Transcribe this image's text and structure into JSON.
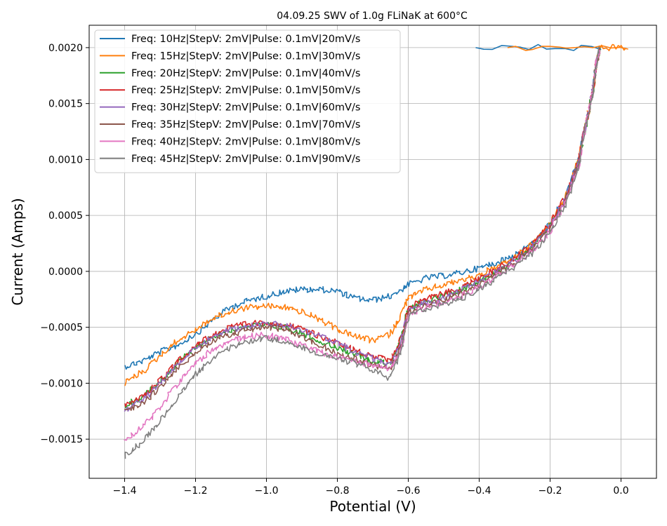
{
  "chart_data": {
    "type": "line",
    "title": "04.09.25 SWV of 1.0g FLiNaK at 600°C",
    "xlabel": "Potential (V)",
    "ylabel": "Current (Amps)",
    "xlim": [
      -1.5,
      0.1
    ],
    "ylim": [
      -0.00185,
      0.0022
    ],
    "x_ticks": [
      -1.4,
      -1.2,
      -1.0,
      -0.8,
      -0.6,
      -0.4,
      -0.2,
      0.0
    ],
    "x_tick_labels": [
      "−1.4",
      "−1.2",
      "−1.0",
      "−0.8",
      "−0.6",
      "−0.4",
      "−0.2",
      "0.0"
    ],
    "y_ticks": [
      -0.0015,
      -0.001,
      -0.0005,
      0.0,
      0.0005,
      0.001,
      0.0015,
      0.002
    ],
    "y_tick_labels": [
      "−0.0015",
      "−0.0010",
      "−0.0005",
      "0.0000",
      "0.0005",
      "0.0010",
      "0.0015",
      "0.0020"
    ],
    "grid": true,
    "legend_position": "top-left",
    "series": [
      {
        "name": "Freq: 10Hz|StepV: 2mV|Pulse: 0.1mV|20mV/s",
        "color": "#1f77b4",
        "points": [
          [
            -1.4,
            -0.00085
          ],
          [
            -1.35,
            -0.0008
          ],
          [
            -1.3,
            -0.00072
          ],
          [
            -1.25,
            -0.00066
          ],
          [
            -1.2,
            -0.00056
          ],
          [
            -1.15,
            -0.00043
          ],
          [
            -1.1,
            -0.00032
          ],
          [
            -1.05,
            -0.00026
          ],
          [
            -1.0,
            -0.00022
          ],
          [
            -0.95,
            -0.00018
          ],
          [
            -0.9,
            -0.00016
          ],
          [
            -0.85,
            -0.00016
          ],
          [
            -0.8,
            -0.00018
          ],
          [
            -0.75,
            -0.00024
          ],
          [
            -0.7,
            -0.00026
          ],
          [
            -0.65,
            -0.00022
          ],
          [
            -0.6,
            -0.00012
          ],
          [
            -0.55,
            -6e-05
          ],
          [
            -0.5,
            -4e-05
          ],
          [
            -0.45,
            -1e-05
          ],
          [
            -0.4,
            3e-05
          ],
          [
            -0.35,
            8e-05
          ],
          [
            -0.3,
            0.00015
          ],
          [
            -0.25,
            0.00025
          ],
          [
            -0.2,
            0.00042
          ],
          [
            -0.15,
            0.00072
          ],
          [
            -0.12,
            0.001
          ],
          [
            -0.1,
            0.0013
          ],
          [
            -0.08,
            0.0016
          ],
          [
            -0.07,
            0.00185
          ],
          [
            -0.06,
            0.002
          ],
          [
            -0.41,
            0.002
          ]
        ]
      },
      {
        "name": "Freq: 15Hz|StepV: 2mV|Pulse: 0.1mV|30mV/s",
        "color": "#ff7f0e",
        "points": [
          [
            -1.4,
            -0.001
          ],
          [
            -1.35,
            -0.0009
          ],
          [
            -1.3,
            -0.00075
          ],
          [
            -1.25,
            -0.00062
          ],
          [
            -1.2,
            -0.00052
          ],
          [
            -1.15,
            -0.00042
          ],
          [
            -1.1,
            -0.00036
          ],
          [
            -1.05,
            -0.00032
          ],
          [
            -1.0,
            -0.00031
          ],
          [
            -0.95,
            -0.00032
          ],
          [
            -0.9,
            -0.00036
          ],
          [
            -0.85,
            -0.00043
          ],
          [
            -0.8,
            -0.00052
          ],
          [
            -0.75,
            -0.00058
          ],
          [
            -0.7,
            -0.00062
          ],
          [
            -0.65,
            -0.00056
          ],
          [
            -0.62,
            -0.00038
          ],
          [
            -0.6,
            -0.00024
          ],
          [
            -0.55,
            -0.00016
          ],
          [
            -0.5,
            -0.00012
          ],
          [
            -0.45,
            -8e-05
          ],
          [
            -0.4,
            -3e-05
          ],
          [
            -0.35,
            4e-05
          ],
          [
            -0.3,
            0.00012
          ],
          [
            -0.25,
            0.00024
          ],
          [
            -0.2,
            0.00042
          ],
          [
            -0.15,
            0.00072
          ],
          [
            -0.12,
            0.001
          ],
          [
            -0.1,
            0.0013
          ],
          [
            -0.08,
            0.0016
          ],
          [
            -0.07,
            0.00185
          ],
          [
            -0.06,
            0.002
          ],
          [
            0.02,
            0.002
          ],
          [
            -0.32,
            0.002
          ]
        ]
      },
      {
        "name": "Freq: 20Hz|StepV: 2mV|Pulse: 0.1mV|40mV/s",
        "color": "#2ca02c",
        "points": [
          [
            -1.4,
            -0.0012
          ],
          [
            -1.35,
            -0.00112
          ],
          [
            -1.3,
            -0.00098
          ],
          [
            -1.25,
            -0.00082
          ],
          [
            -1.2,
            -0.00068
          ],
          [
            -1.15,
            -0.00058
          ],
          [
            -1.1,
            -0.00052
          ],
          [
            -1.05,
            -0.00049
          ],
          [
            -1.0,
            -0.00048
          ],
          [
            -0.95,
            -0.0005
          ],
          [
            -0.9,
            -0.00055
          ],
          [
            -0.85,
            -0.00062
          ],
          [
            -0.8,
            -0.00068
          ],
          [
            -0.75,
            -0.00074
          ],
          [
            -0.7,
            -0.0008
          ],
          [
            -0.65,
            -0.00082
          ],
          [
            -0.62,
            -0.0006
          ],
          [
            -0.6,
            -0.00034
          ],
          [
            -0.55,
            -0.00026
          ],
          [
            -0.5,
            -0.00022
          ],
          [
            -0.45,
            -0.00016
          ],
          [
            -0.4,
            -8e-05
          ],
          [
            -0.35,
            0.0
          ],
          [
            -0.3,
            0.0001
          ],
          [
            -0.25,
            0.00022
          ],
          [
            -0.2,
            0.0004
          ],
          [
            -0.15,
            0.0007
          ],
          [
            -0.12,
            0.00098
          ],
          [
            -0.1,
            0.0013
          ],
          [
            -0.08,
            0.0016
          ],
          [
            -0.07,
            0.00185
          ],
          [
            -0.06,
            0.00198
          ]
        ]
      },
      {
        "name": "Freq: 25Hz|StepV: 2mV|Pulse: 0.1mV|50mV/s",
        "color": "#d62728",
        "points": [
          [
            -1.4,
            -0.0012
          ],
          [
            -1.35,
            -0.00112
          ],
          [
            -1.3,
            -0.00097
          ],
          [
            -1.25,
            -0.0008
          ],
          [
            -1.2,
            -0.00066
          ],
          [
            -1.15,
            -0.00056
          ],
          [
            -1.1,
            -0.0005
          ],
          [
            -1.05,
            -0.00047
          ],
          [
            -1.0,
            -0.00046
          ],
          [
            -0.95,
            -0.00047
          ],
          [
            -0.9,
            -0.00052
          ],
          [
            -0.85,
            -0.00058
          ],
          [
            -0.8,
            -0.00064
          ],
          [
            -0.75,
            -0.0007
          ],
          [
            -0.7,
            -0.00076
          ],
          [
            -0.65,
            -0.0008
          ],
          [
            -0.62,
            -0.0006
          ],
          [
            -0.6,
            -0.00032
          ],
          [
            -0.55,
            -0.00024
          ],
          [
            -0.5,
            -0.0002
          ],
          [
            -0.45,
            -0.00014
          ],
          [
            -0.4,
            -6e-05
          ],
          [
            -0.35,
            2e-05
          ],
          [
            -0.3,
            0.00012
          ],
          [
            -0.25,
            0.00024
          ],
          [
            -0.2,
            0.00042
          ],
          [
            -0.15,
            0.00072
          ],
          [
            -0.12,
            0.001
          ],
          [
            -0.1,
            0.0013
          ],
          [
            -0.08,
            0.0016
          ],
          [
            -0.07,
            0.00185
          ],
          [
            -0.06,
            0.00198
          ]
        ]
      },
      {
        "name": "Freq: 30Hz|StepV: 2mV|Pulse: 0.1mV|60mV/s",
        "color": "#9467bd",
        "points": [
          [
            -1.4,
            -0.00125
          ],
          [
            -1.35,
            -0.00115
          ],
          [
            -1.3,
            -0.001
          ],
          [
            -1.25,
            -0.00083
          ],
          [
            -1.2,
            -0.00068
          ],
          [
            -1.15,
            -0.00058
          ],
          [
            -1.1,
            -0.00052
          ],
          [
            -1.05,
            -0.00049
          ],
          [
            -1.0,
            -0.00047
          ],
          [
            -0.95,
            -0.00048
          ],
          [
            -0.9,
            -0.00052
          ],
          [
            -0.85,
            -0.00058
          ],
          [
            -0.8,
            -0.00064
          ],
          [
            -0.75,
            -0.00072
          ],
          [
            -0.7,
            -0.00078
          ],
          [
            -0.65,
            -0.00084
          ],
          [
            -0.62,
            -0.00062
          ],
          [
            -0.6,
            -0.00034
          ],
          [
            -0.55,
            -0.00028
          ],
          [
            -0.5,
            -0.00024
          ],
          [
            -0.45,
            -0.00017
          ],
          [
            -0.4,
            -9e-05
          ],
          [
            -0.35,
            0.0
          ],
          [
            -0.3,
            0.0001
          ],
          [
            -0.25,
            0.00022
          ],
          [
            -0.2,
            0.0004
          ],
          [
            -0.15,
            0.0007
          ],
          [
            -0.12,
            0.00098
          ],
          [
            -0.1,
            0.0013
          ],
          [
            -0.08,
            0.0016
          ],
          [
            -0.07,
            0.00185
          ],
          [
            -0.06,
            0.00198
          ]
        ]
      },
      {
        "name": "Freq: 35Hz|StepV: 2mV|Pulse: 0.1mV|70mV/s",
        "color": "#8c564b",
        "points": [
          [
            -1.4,
            -0.00125
          ],
          [
            -1.35,
            -0.00118
          ],
          [
            -1.3,
            -0.00104
          ],
          [
            -1.25,
            -0.00087
          ],
          [
            -1.2,
            -0.00072
          ],
          [
            -1.15,
            -0.00062
          ],
          [
            -1.1,
            -0.00056
          ],
          [
            -1.05,
            -0.00052
          ],
          [
            -1.0,
            -0.0005
          ],
          [
            -0.95,
            -0.00052
          ],
          [
            -0.9,
            -0.00058
          ],
          [
            -0.85,
            -0.00066
          ],
          [
            -0.8,
            -0.00073
          ],
          [
            -0.75,
            -0.00078
          ],
          [
            -0.7,
            -0.00084
          ],
          [
            -0.65,
            -0.00088
          ],
          [
            -0.62,
            -0.00066
          ],
          [
            -0.6,
            -0.00036
          ],
          [
            -0.55,
            -0.0003
          ],
          [
            -0.5,
            -0.00026
          ],
          [
            -0.45,
            -0.0002
          ],
          [
            -0.4,
            -0.00012
          ],
          [
            -0.35,
            -2e-05
          ],
          [
            -0.3,
            8e-05
          ],
          [
            -0.25,
            0.0002
          ],
          [
            -0.2,
            0.00038
          ],
          [
            -0.15,
            0.00068
          ],
          [
            -0.12,
            0.00096
          ],
          [
            -0.1,
            0.0013
          ],
          [
            -0.08,
            0.0016
          ],
          [
            -0.07,
            0.00185
          ],
          [
            -0.06,
            0.00198
          ]
        ]
      },
      {
        "name": "Freq: 40Hz|StepV: 2mV|Pulse: 0.1mV|80mV/s",
        "color": "#e377c2",
        "points": [
          [
            -1.4,
            -0.0015
          ],
          [
            -1.35,
            -0.0014
          ],
          [
            -1.3,
            -0.00122
          ],
          [
            -1.25,
            -0.001
          ],
          [
            -1.2,
            -0.00082
          ],
          [
            -1.15,
            -0.0007
          ],
          [
            -1.1,
            -0.00062
          ],
          [
            -1.05,
            -0.00058
          ],
          [
            -1.0,
            -0.00057
          ],
          [
            -0.95,
            -0.0006
          ],
          [
            -0.9,
            -0.00066
          ],
          [
            -0.85,
            -0.00072
          ],
          [
            -0.8,
            -0.00076
          ],
          [
            -0.75,
            -0.0008
          ],
          [
            -0.7,
            -0.00084
          ],
          [
            -0.65,
            -0.00088
          ],
          [
            -0.62,
            -0.00068
          ],
          [
            -0.6,
            -0.00038
          ],
          [
            -0.55,
            -0.00032
          ],
          [
            -0.5,
            -0.00028
          ],
          [
            -0.45,
            -0.00022
          ],
          [
            -0.4,
            -0.00014
          ],
          [
            -0.35,
            -4e-05
          ],
          [
            -0.3,
            6e-05
          ],
          [
            -0.25,
            0.00018
          ],
          [
            -0.2,
            0.00036
          ],
          [
            -0.15,
            0.00066
          ],
          [
            -0.12,
            0.00094
          ],
          [
            -0.1,
            0.0013
          ],
          [
            -0.08,
            0.0016
          ],
          [
            -0.07,
            0.00185
          ],
          [
            -0.06,
            0.00198
          ]
        ]
      },
      {
        "name": "Freq: 45Hz|StepV: 2mV|Pulse: 0.1mV|90mV/s",
        "color": "#7f7f7f",
        "points": [
          [
            -1.4,
            -0.00165
          ],
          [
            -1.35,
            -0.00152
          ],
          [
            -1.3,
            -0.00134
          ],
          [
            -1.25,
            -0.00112
          ],
          [
            -1.2,
            -0.00092
          ],
          [
            -1.15,
            -0.00078
          ],
          [
            -1.1,
            -0.00068
          ],
          [
            -1.05,
            -0.00062
          ],
          [
            -1.0,
            -0.0006
          ],
          [
            -0.95,
            -0.00062
          ],
          [
            -0.9,
            -0.00068
          ],
          [
            -0.85,
            -0.00074
          ],
          [
            -0.8,
            -0.00078
          ],
          [
            -0.75,
            -0.00082
          ],
          [
            -0.7,
            -0.00088
          ],
          [
            -0.65,
            -0.00096
          ],
          [
            -0.62,
            -0.00072
          ],
          [
            -0.6,
            -0.0004
          ],
          [
            -0.55,
            -0.00034
          ],
          [
            -0.5,
            -0.0003
          ],
          [
            -0.45,
            -0.00024
          ],
          [
            -0.4,
            -0.00016
          ],
          [
            -0.35,
            -6e-05
          ],
          [
            -0.3,
            4e-05
          ],
          [
            -0.25,
            0.00016
          ],
          [
            -0.2,
            0.00034
          ],
          [
            -0.15,
            0.00064
          ],
          [
            -0.12,
            0.00092
          ],
          [
            -0.1,
            0.0013
          ],
          [
            -0.08,
            0.0016
          ],
          [
            -0.07,
            0.00185
          ],
          [
            -0.06,
            0.002
          ]
        ]
      }
    ]
  }
}
